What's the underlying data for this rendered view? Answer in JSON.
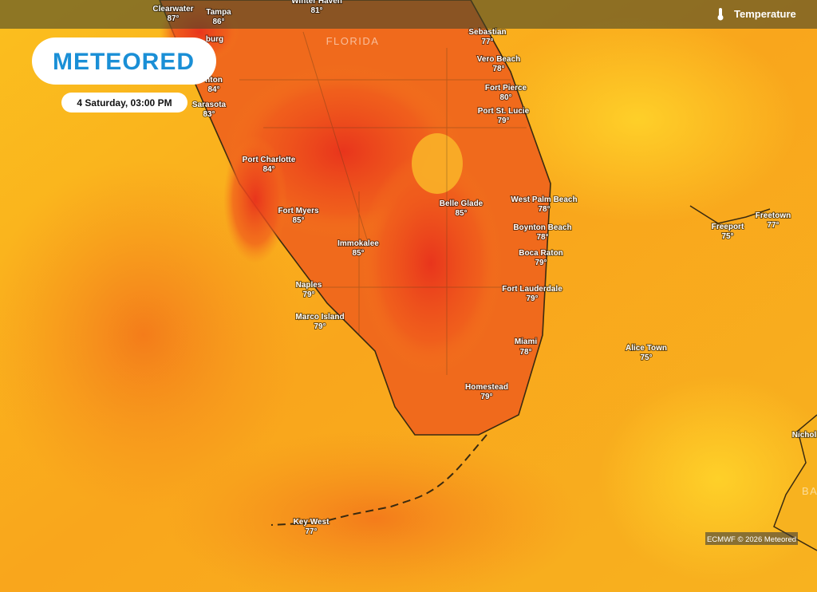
{
  "header": {
    "title": "Temperature"
  },
  "logo": "METEORED",
  "date": "4 Saturday, 03:00 PM",
  "attribution": "ECMWF © 2026 Meteored",
  "region_labels": [
    "FLORIDA",
    "BAHA"
  ],
  "cities": [
    {
      "name": "Clearwater",
      "temp": "87°"
    },
    {
      "name": "Tampa",
      "temp": "86°"
    },
    {
      "name": "Winter Haven",
      "temp": "81°"
    },
    {
      "name": "burg"
    },
    {
      "name": "nton",
      "temp": "84°"
    },
    {
      "name": "Sarasota",
      "temp": "83°"
    },
    {
      "name": "Port Charlotte",
      "temp": "84°"
    },
    {
      "name": "Fort Myers",
      "temp": "85°"
    },
    {
      "name": "Immokalee",
      "temp": "85°"
    },
    {
      "name": "Belle Glade",
      "temp": "85°"
    },
    {
      "name": "Sebastian",
      "temp": "77°"
    },
    {
      "name": "Vero Beach",
      "temp": "78°"
    },
    {
      "name": "Fort Pierce",
      "temp": "80°"
    },
    {
      "name": "Port St. Lucie",
      "temp": "79°"
    },
    {
      "name": "West Palm Beach",
      "temp": "78°"
    },
    {
      "name": "Boynton Beach",
      "temp": "78°"
    },
    {
      "name": "Boca Raton",
      "temp": "79°"
    },
    {
      "name": "Fort Lauderdale",
      "temp": "79°"
    },
    {
      "name": "Miami",
      "temp": "78°"
    },
    {
      "name": "Naples",
      "temp": "79°"
    },
    {
      "name": "Marco Island",
      "temp": "79°"
    },
    {
      "name": "Homestead",
      "temp": "79°"
    },
    {
      "name": "Alice Town",
      "temp": "75°"
    },
    {
      "name": "Freeport",
      "temp": "75°"
    },
    {
      "name": "Freetown",
      "temp": "77°"
    },
    {
      "name": "Key West",
      "temp": "77°"
    },
    {
      "name": "Nichol"
    }
  ]
}
